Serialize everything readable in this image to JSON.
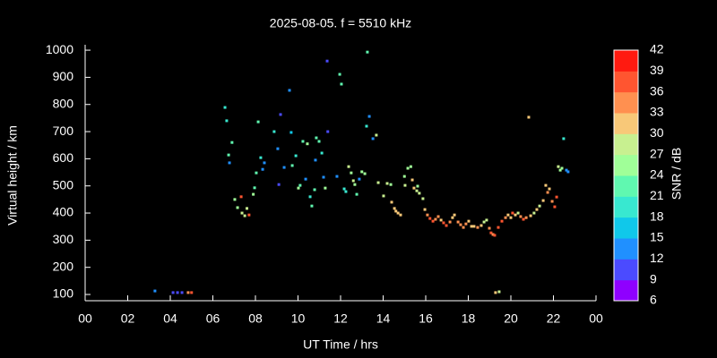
{
  "chart_data": {
    "type": "scatter",
    "title": "2025-08-05. f = 5510 kHz",
    "xlabel": "UT Time / hrs",
    "ylabel": "Virtual height / km",
    "colorbar_label": "SNR / dB",
    "xlim": [
      0,
      24
    ],
    "xticks": [
      {
        "value": 0,
        "label": "00"
      },
      {
        "value": 2,
        "label": "02"
      },
      {
        "value": 4,
        "label": "04"
      },
      {
        "value": 6,
        "label": "06"
      },
      {
        "value": 8,
        "label": "08"
      },
      10,
      12,
      14,
      16,
      18,
      20,
      22,
      {
        "value": 24,
        "label": "00"
      }
    ],
    "ylim": [
      77,
      1020
    ],
    "yticks": [
      100,
      200,
      300,
      400,
      500,
      600,
      700,
      800,
      900,
      1000
    ],
    "zlim": [
      6,
      42
    ],
    "zticks": [
      6,
      9,
      12,
      15,
      18,
      21,
      24,
      27,
      30,
      33,
      36,
      39,
      42
    ],
    "colorscale": [
      "#8f00ff",
      "#4b4bff",
      "#2090ff",
      "#10c8ea",
      "#38e8d0",
      "#60f8b0",
      "#a0ff98",
      "#c8f090",
      "#f8c878",
      "#ff9050",
      "#ff5530",
      "#ff1a10"
    ],
    "grid": false,
    "x": [
      3.28,
      4.13,
      4.34,
      4.55,
      4.84,
      5.0,
      6.57,
      6.65,
      6.74,
      6.78,
      6.9,
      7.03,
      7.16,
      7.33,
      7.37,
      7.5,
      7.6,
      7.7,
      7.9,
      7.96,
      8.04,
      8.13,
      8.25,
      8.34,
      8.42,
      8.88,
      9.05,
      9.1,
      9.18,
      9.35,
      9.6,
      9.68,
      9.73,
      9.9,
      10.02,
      10.1,
      10.23,
      10.36,
      10.44,
      10.57,
      10.65,
      10.78,
      10.82,
      10.86,
      10.99,
      11.12,
      11.2,
      11.28,
      11.37,
      11.4,
      11.83,
      11.96,
      12.04,
      12.17,
      12.25,
      12.38,
      12.5,
      12.6,
      12.67,
      12.76,
      12.88,
      13.0,
      13.14,
      13.22,
      13.26,
      13.35,
      13.52,
      13.68,
      13.77,
      14.02,
      14.19,
      14.36,
      14.4,
      14.53,
      14.6,
      14.7,
      14.82,
      15.0,
      15.03,
      15.16,
      15.3,
      15.37,
      15.45,
      15.58,
      15.62,
      15.7,
      15.87,
      15.96,
      16.08,
      16.2,
      16.34,
      16.46,
      16.59,
      16.72,
      16.84,
      16.97,
      17.14,
      17.26,
      17.35,
      17.52,
      17.64,
      17.77,
      17.89,
      18.02,
      18.15,
      18.27,
      18.44,
      18.61,
      18.74,
      18.86,
      18.99,
      19.07,
      19.16,
      19.24,
      19.28,
      19.45,
      19.41,
      19.58,
      19.75,
      19.87,
      20.0,
      20.08,
      20.21,
      20.34,
      20.46,
      20.59,
      20.72,
      20.84,
      20.93,
      21.09,
      21.22,
      21.35,
      21.52,
      21.64,
      21.73,
      21.81,
      21.94,
      22.06,
      22.15,
      22.23,
      22.32,
      22.4,
      22.48,
      22.61,
      22.69
    ],
    "y": [
      113,
      107,
      107,
      107,
      107,
      107,
      789,
      740,
      614,
      585,
      660,
      450,
      420,
      460,
      400,
      390,
      417,
      393,
      469,
      493,
      548,
      736,
      604,
      561,
      585,
      700,
      637,
      505,
      763,
      568,
      852,
      697,
      575,
      611,
      492,
      502,
      664,
      525,
      655,
      460,
      426,
      486,
      595,
      677,
      664,
      621,
      532,
      492,
      960,
      700,
      535,
      911,
      875,
      489,
      479,
      571,
      548,
      519,
      505,
      469,
      525,
      552,
      545,
      720,
      993,
      756,
      674,
      687,
      512,
      463,
      509,
      505,
      440,
      417,
      407,
      400,
      393,
      535,
      502,
      565,
      571,
      522,
      492,
      482,
      499,
      473,
      453,
      413,
      393,
      380,
      370,
      377,
      387,
      374,
      364,
      354,
      367,
      383,
      393,
      367,
      357,
      347,
      360,
      370,
      351,
      351,
      347,
      354,
      367,
      374,
      344,
      327,
      321,
      318,
      107,
      110,
      347,
      370,
      383,
      393,
      383,
      400,
      393,
      400,
      387,
      377,
      383,
      753,
      390,
      400,
      413,
      426,
      446,
      502,
      476,
      489,
      443,
      423,
      459,
      571,
      558,
      565,
      674,
      558,
      552
    ],
    "z": [
      14,
      11,
      11,
      10,
      34,
      38,
      19,
      19,
      22,
      13,
      22,
      26,
      24,
      37,
      27,
      28,
      27,
      38,
      24,
      23,
      21,
      23,
      19,
      14,
      13,
      20,
      13,
      10,
      10,
      12,
      14,
      16,
      21,
      19,
      26,
      23,
      22,
      13,
      24,
      20,
      21,
      23,
      12,
      22,
      22,
      20,
      14,
      26,
      10,
      10,
      14,
      23,
      23,
      20,
      20,
      27,
      25,
      28,
      24,
      22,
      14,
      26,
      26,
      20,
      22,
      13,
      13,
      27,
      27,
      27,
      27,
      26,
      30,
      32,
      32,
      31,
      30,
      25,
      28,
      25,
      26,
      30,
      30,
      29,
      26,
      29,
      29,
      32,
      33,
      36,
      38,
      34,
      33,
      32,
      36,
      38,
      34,
      31,
      30,
      33,
      34,
      33,
      34,
      30,
      32,
      31,
      33,
      32,
      29,
      28,
      34,
      36,
      35,
      37,
      30,
      29,
      36,
      37,
      34,
      31,
      32,
      37,
      31,
      29,
      33,
      37,
      34,
      31,
      30,
      29,
      31,
      29,
      32,
      32,
      33,
      31,
      33,
      36,
      36,
      27,
      26,
      26,
      18,
      12,
      12
    ]
  }
}
